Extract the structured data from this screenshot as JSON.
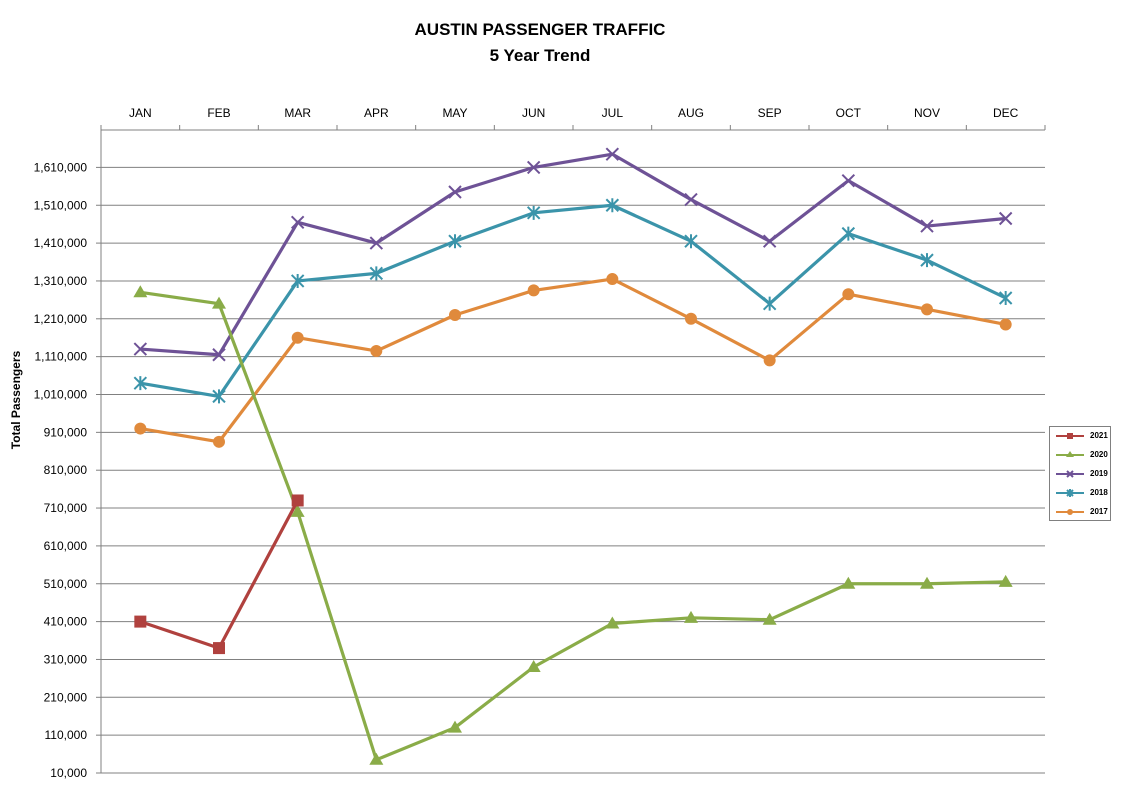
{
  "chart_data": {
    "type": "line",
    "title": "AUSTIN PASSENGER TRAFFIC",
    "subtitle": "5 Year Trend",
    "ylabel": "Total Passengers",
    "xlabel": "",
    "ylim": [
      10000,
      1670000
    ],
    "yticks": [
      "10,000",
      "110,000",
      "210,000",
      "310,000",
      "410,000",
      "510,000",
      "610,000",
      "710,000",
      "810,000",
      "910,000",
      "1,010,000",
      "1,110,000",
      "1,210,000",
      "1,310,000",
      "1,410,000",
      "1,510,000",
      "1,610,000"
    ],
    "categories": [
      "JAN",
      "FEB",
      "MAR",
      "APR",
      "MAY",
      "JUN",
      "JUL",
      "AUG",
      "SEP",
      "OCT",
      "NOV",
      "DEC"
    ],
    "x_axis_position": "top",
    "grid": true,
    "legend_position": "right",
    "series": [
      {
        "name": "2021",
        "color": "#b0413e",
        "marker": "square",
        "values": [
          410000,
          340000,
          730000,
          null,
          null,
          null,
          null,
          null,
          null,
          null,
          null,
          null
        ]
      },
      {
        "name": "2020",
        "color": "#8aac48",
        "marker": "triangle",
        "values": [
          1280000,
          1250000,
          700000,
          45000,
          130000,
          290000,
          405000,
          420000,
          415000,
          510000,
          510000,
          515000
        ]
      },
      {
        "name": "2019",
        "color": "#6e5296",
        "marker": "x",
        "values": [
          1130000,
          1115000,
          1465000,
          1410000,
          1545000,
          1610000,
          1645000,
          1525000,
          1415000,
          1575000,
          1455000,
          1475000
        ]
      },
      {
        "name": "2018",
        "color": "#3b94aa",
        "marker": "asterisk",
        "values": [
          1040000,
          1005000,
          1310000,
          1330000,
          1415000,
          1490000,
          1510000,
          1415000,
          1250000,
          1435000,
          1365000,
          1265000
        ]
      },
      {
        "name": "2017",
        "color": "#e08a3c",
        "marker": "circle",
        "values": [
          920000,
          885000,
          1160000,
          1125000,
          1220000,
          1285000,
          1315000,
          1210000,
          1100000,
          1275000,
          1235000,
          1195000
        ]
      }
    ]
  }
}
